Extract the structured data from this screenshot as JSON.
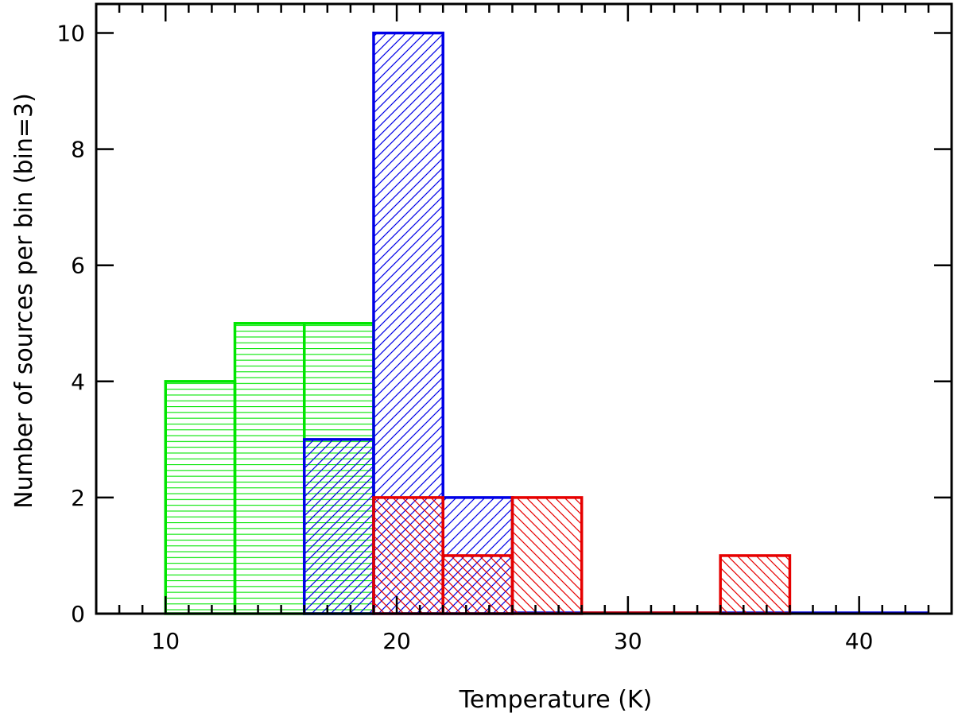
{
  "chart_data": {
    "type": "bar",
    "title": "",
    "xlabel": "Temperature (K)",
    "ylabel": "Number of sources per bin (bin=3)",
    "xlim": [
      7,
      44
    ],
    "ylim": [
      0,
      10.5
    ],
    "x_ticks": [
      10,
      20,
      30,
      40
    ],
    "y_ticks": [
      0,
      2,
      4,
      6,
      8,
      10
    ],
    "x_tick_labels": [
      "10",
      "20",
      "30",
      "40"
    ],
    "y_tick_labels": [
      "0",
      "2",
      "4",
      "6",
      "8",
      "10"
    ],
    "grid": false,
    "bin_width": 3,
    "series": [
      {
        "color": "#00e600",
        "hatch": "horizontal",
        "bins": [
          {
            "x0": 10,
            "x1": 13,
            "count": 4
          },
          {
            "x0": 13,
            "x1": 16,
            "count": 5
          },
          {
            "x0": 16,
            "x1": 19,
            "count": 5
          }
        ]
      },
      {
        "color": "#0000e6",
        "hatch": "forward-diagonal",
        "bins": [
          {
            "x0": 16,
            "x1": 19,
            "count": 3
          },
          {
            "x0": 19,
            "x1": 22,
            "count": 10
          },
          {
            "x0": 22,
            "x1": 25,
            "count": 2
          },
          {
            "x0": 25,
            "x1": 28,
            "count": 0
          },
          {
            "x0": 28,
            "x1": 31,
            "count": 0
          },
          {
            "x0": 31,
            "x1": 34,
            "count": 0
          },
          {
            "x0": 34,
            "x1": 37,
            "count": 0
          },
          {
            "x0": 37,
            "x1": 40,
            "count": 0
          },
          {
            "x0": 40,
            "x1": 43,
            "count": 0
          }
        ]
      },
      {
        "color": "#e60000",
        "hatch": "back-diagonal",
        "bins": [
          {
            "x0": 19,
            "x1": 22,
            "count": 2
          },
          {
            "x0": 22,
            "x1": 25,
            "count": 1
          },
          {
            "x0": 25,
            "x1": 28,
            "count": 2
          },
          {
            "x0": 28,
            "x1": 31,
            "count": 0
          },
          {
            "x0": 31,
            "x1": 34,
            "count": 0
          },
          {
            "x0": 34,
            "x1": 37,
            "count": 1
          }
        ]
      }
    ]
  }
}
